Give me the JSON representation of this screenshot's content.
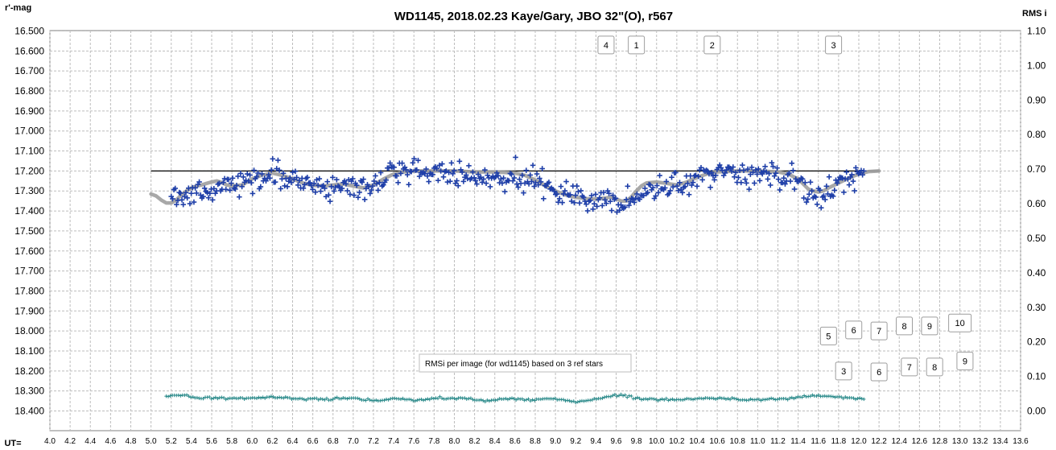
{
  "chart_data": {
    "type": "scatter",
    "title": "WD1145, 2018.02.23  Kaye/Gary, JBO 32\"(O), r567",
    "y_left_label": "r'-mag",
    "y_right_label": "RMS i",
    "x_label": "UT=",
    "x_range": [
      4.0,
      13.6
    ],
    "x_ticks": [
      "4.0",
      "4.2",
      "4.4",
      "4.6",
      "4.8",
      "5.0",
      "5.2",
      "5.4",
      "5.6",
      "5.8",
      "6.0",
      "6.2",
      "6.4",
      "6.6",
      "6.8",
      "7.0",
      "7.2",
      "7.4",
      "7.6",
      "7.8",
      "8.0",
      "8.2",
      "8.4",
      "8.6",
      "8.8",
      "9.0",
      "9.2",
      "9.4",
      "9.6",
      "9.8",
      "10.0",
      "10.2",
      "10.4",
      "10.6",
      "10.8",
      "11.0",
      "11.2",
      "11.4",
      "11.6",
      "11.8",
      "12.0",
      "12.2",
      "12.4",
      "12.6",
      "12.8",
      "13.0",
      "13.2",
      "13.4",
      "13.6"
    ],
    "y_left_range": [
      16.5,
      18.4
    ],
    "y_left_inverted": true,
    "y_left_ticks": [
      "16.500",
      "16.600",
      "16.700",
      "16.800",
      "16.900",
      "17.000",
      "17.100",
      "17.200",
      "17.300",
      "17.400",
      "17.500",
      "17.600",
      "17.700",
      "17.800",
      "17.900",
      "18.000",
      "18.100",
      "18.200",
      "18.300",
      "18.400"
    ],
    "y_right_range": [
      0.0,
      1.1
    ],
    "y_right_ticks": [
      "0.00",
      "0.10",
      "0.20",
      "0.30",
      "0.40",
      "0.50",
      "0.60",
      "0.70",
      "0.80",
      "0.90",
      "1.00",
      "1.10"
    ],
    "grid": true,
    "reference_line": {
      "y": 17.2,
      "x_start": 5.0,
      "x_end": 12.2,
      "color": "#000000"
    },
    "colors": {
      "magnitude": "#1f3fa8",
      "model": "#9e9e9e",
      "rms": "#2a8a8a"
    },
    "model_curve": {
      "x": [
        5.0,
        5.05,
        5.1,
        5.15,
        5.2,
        5.25,
        5.3,
        5.35,
        5.4,
        5.45,
        5.5,
        5.55,
        5.6,
        5.65,
        5.7,
        5.75,
        5.8,
        5.9,
        6.0,
        6.1,
        6.2,
        6.3,
        6.4,
        6.5,
        6.6,
        6.7,
        6.8,
        6.9,
        7.0,
        7.1,
        7.2,
        7.3,
        7.4,
        7.5,
        7.6,
        7.8,
        8.0,
        8.2,
        8.4,
        8.6,
        8.7,
        8.8,
        8.9,
        9.0,
        9.1,
        9.2,
        9.3,
        9.4,
        9.5,
        9.55,
        9.6,
        9.65,
        9.7,
        9.75,
        9.8,
        9.85,
        9.9,
        10.0,
        10.1,
        10.2,
        10.3,
        10.4,
        10.5,
        10.6,
        10.8,
        11.0,
        11.2,
        11.3,
        11.4,
        11.45,
        11.5,
        11.55,
        11.6,
        11.65,
        11.7,
        11.8,
        11.9,
        12.0,
        12.1,
        12.2
      ],
      "y": [
        17.315,
        17.325,
        17.345,
        17.36,
        17.36,
        17.345,
        17.32,
        17.3,
        17.285,
        17.275,
        17.27,
        17.262,
        17.255,
        17.25,
        17.258,
        17.27,
        17.275,
        17.27,
        17.24,
        17.22,
        17.21,
        17.222,
        17.24,
        17.26,
        17.272,
        17.275,
        17.27,
        17.265,
        17.275,
        17.285,
        17.27,
        17.24,
        17.215,
        17.205,
        17.2,
        17.2,
        17.2,
        17.205,
        17.205,
        17.21,
        17.222,
        17.245,
        17.275,
        17.3,
        17.32,
        17.332,
        17.338,
        17.34,
        17.335,
        17.33,
        17.34,
        17.35,
        17.35,
        17.33,
        17.3,
        17.275,
        17.26,
        17.255,
        17.262,
        17.27,
        17.255,
        17.232,
        17.215,
        17.205,
        17.2,
        17.2,
        17.205,
        17.215,
        17.24,
        17.265,
        17.29,
        17.3,
        17.305,
        17.3,
        17.285,
        17.26,
        17.235,
        17.215,
        17.203,
        17.2
      ]
    },
    "magnitude_trend": {
      "x": [
        5.2,
        5.3,
        5.4,
        5.5,
        5.6,
        5.7,
        5.8,
        5.9,
        6.0,
        6.1,
        6.2,
        6.3,
        6.4,
        6.5,
        6.6,
        6.7,
        6.8,
        6.9,
        7.0,
        7.1,
        7.2,
        7.3,
        7.4,
        7.5,
        7.6,
        7.7,
        7.8,
        7.9,
        8.0,
        8.1,
        8.2,
        8.3,
        8.4,
        8.5,
        8.6,
        8.7,
        8.8,
        8.9,
        9.0,
        9.1,
        9.2,
        9.3,
        9.4,
        9.5,
        9.6,
        9.7,
        9.8,
        9.9,
        10.0,
        10.1,
        10.2,
        10.3,
        10.4,
        10.5,
        10.6,
        10.7,
        10.8,
        10.9,
        11.0,
        11.1,
        11.2,
        11.3,
        11.4,
        11.5,
        11.6,
        11.7,
        11.8,
        11.9,
        12.0,
        12.05
      ],
      "y": [
        17.35,
        17.34,
        17.31,
        17.3,
        17.29,
        17.28,
        17.27,
        17.265,
        17.25,
        17.23,
        17.22,
        17.23,
        17.245,
        17.26,
        17.27,
        17.275,
        17.27,
        17.27,
        17.28,
        17.285,
        17.27,
        17.24,
        17.215,
        17.2,
        17.195,
        17.2,
        17.21,
        17.215,
        17.22,
        17.225,
        17.23,
        17.23,
        17.235,
        17.235,
        17.235,
        17.245,
        17.26,
        17.28,
        17.305,
        17.325,
        17.34,
        17.345,
        17.35,
        17.345,
        17.355,
        17.36,
        17.33,
        17.3,
        17.27,
        17.265,
        17.27,
        17.255,
        17.23,
        17.215,
        17.21,
        17.21,
        17.215,
        17.215,
        17.22,
        17.22,
        17.225,
        17.23,
        17.26,
        17.295,
        17.31,
        17.29,
        17.26,
        17.245,
        17.23,
        17.225
      ]
    },
    "rms_trend": {
      "x": [
        5.15,
        5.2,
        5.25,
        5.3,
        5.35,
        5.4,
        5.45,
        5.5,
        5.55,
        5.6,
        5.7,
        5.8,
        5.9,
        6.0,
        6.1,
        6.2,
        6.3,
        6.4,
        6.5,
        6.6,
        6.7,
        6.8,
        6.9,
        7.0,
        7.1,
        7.2,
        7.3,
        7.4,
        7.5,
        7.6,
        7.7,
        7.8,
        7.9,
        8.0,
        8.1,
        8.2,
        8.3,
        8.4,
        8.5,
        8.6,
        8.7,
        8.8,
        8.9,
        9.0,
        9.1,
        9.2,
        9.3,
        9.4,
        9.5,
        9.6,
        9.7,
        9.8,
        9.9,
        10.0,
        10.1,
        10.2,
        10.3,
        10.4,
        10.5,
        10.6,
        10.7,
        10.8,
        10.9,
        11.0,
        11.1,
        11.2,
        11.3,
        11.4,
        11.5,
        11.6,
        11.7,
        11.8,
        11.9,
        12.0,
        12.05
      ],
      "y": [
        0.043,
        0.044,
        0.045,
        0.046,
        0.044,
        0.041,
        0.038,
        0.037,
        0.039,
        0.037,
        0.038,
        0.036,
        0.036,
        0.037,
        0.039,
        0.04,
        0.039,
        0.036,
        0.035,
        0.036,
        0.035,
        0.035,
        0.037,
        0.038,
        0.033,
        0.03,
        0.032,
        0.036,
        0.034,
        0.031,
        0.033,
        0.036,
        0.035,
        0.036,
        0.036,
        0.033,
        0.03,
        0.032,
        0.036,
        0.034,
        0.031,
        0.033,
        0.036,
        0.035,
        0.03,
        0.027,
        0.03,
        0.035,
        0.04,
        0.045,
        0.044,
        0.038,
        0.034,
        0.035,
        0.033,
        0.032,
        0.034,
        0.036,
        0.037,
        0.037,
        0.035,
        0.034,
        0.032,
        0.034,
        0.035,
        0.034,
        0.037,
        0.04,
        0.043,
        0.043,
        0.042,
        0.04,
        0.038,
        0.035,
        0.032
      ]
    },
    "annotations": [
      {
        "label": "4",
        "x": 9.5,
        "mag": 16.57
      },
      {
        "label": "1",
        "x": 9.8,
        "mag": 16.57
      },
      {
        "label": "2",
        "x": 10.55,
        "mag": 16.57
      },
      {
        "label": "3",
        "x": 11.75,
        "mag": 16.57
      },
      {
        "label": "5",
        "x": 11.7,
        "mag": 18.025
      },
      {
        "label": "6",
        "x": 11.95,
        "mag": 17.995
      },
      {
        "label": "7",
        "x": 12.2,
        "mag": 18.0
      },
      {
        "label": "8",
        "x": 12.45,
        "mag": 17.975
      },
      {
        "label": "9",
        "x": 12.7,
        "mag": 17.975
      },
      {
        "label": "10",
        "x": 13.0,
        "mag": 17.96
      },
      {
        "label": "3",
        "x": 11.85,
        "mag": 18.2
      },
      {
        "label": "6",
        "x": 12.2,
        "mag": 18.205
      },
      {
        "label": "7",
        "x": 12.5,
        "mag": 18.18
      },
      {
        "label": "8",
        "x": 12.75,
        "mag": 18.18
      },
      {
        "label": "9",
        "x": 13.05,
        "mag": 18.15
      }
    ],
    "note": "RMSi per image (for wd1145) based on 3 ref stars"
  }
}
